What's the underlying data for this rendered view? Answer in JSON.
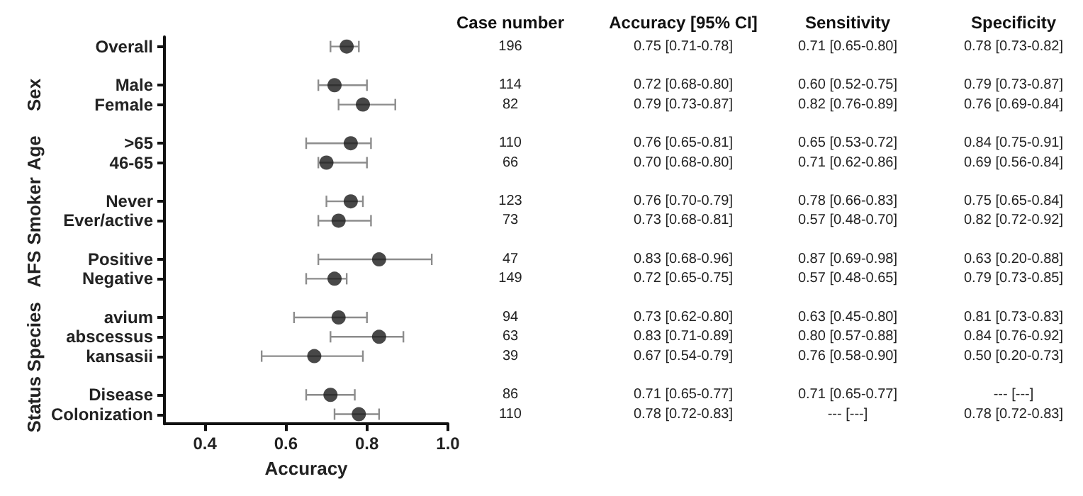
{
  "chart_data": {
    "type": "scatter",
    "xlabel": "Accuracy",
    "marker": "circle",
    "color": "#1a1a1a",
    "grid": false,
    "orientation": "horizontal",
    "categories": [
      "Overall",
      null,
      "Male",
      "Female",
      null,
      ">65",
      "46-65",
      null,
      "Never",
      "Ever/active",
      null,
      "Positive",
      "Negative",
      null,
      "avium",
      "abscessus",
      "kansasii",
      null,
      "Disease",
      "Colonization"
    ],
    "values": [
      0.75,
      null,
      0.72,
      0.79,
      null,
      0.76,
      0.7,
      null,
      0.76,
      0.73,
      null,
      0.83,
      0.72,
      null,
      0.73,
      0.83,
      0.67,
      null,
      0.71,
      0.78
    ],
    "errors": [
      [
        0.71,
        0.78
      ],
      null,
      [
        0.68,
        0.8
      ],
      [
        0.73,
        0.87
      ],
      null,
      [
        0.65,
        0.81
      ],
      [
        0.68,
        0.8
      ],
      null,
      [
        0.7,
        0.79
      ],
      [
        0.68,
        0.81
      ],
      null,
      [
        0.68,
        0.96
      ],
      [
        0.65,
        0.75
      ],
      null,
      [
        0.62,
        0.8
      ],
      [
        0.71,
        0.89
      ],
      [
        0.54,
        0.79
      ],
      null,
      [
        0.65,
        0.77
      ],
      [
        0.72,
        0.83
      ]
    ],
    "xlim": [
      0.3,
      1.0
    ],
    "xticks": [
      {
        "value": 0.4,
        "label": "0.4"
      },
      {
        "value": 0.6,
        "label": "0.6"
      },
      {
        "value": 0.8,
        "label": "0.8"
      },
      {
        "value": 1.0,
        "label": "1.0"
      }
    ],
    "annotations": [
      "Sex",
      "Age",
      "Smoker",
      "AFS",
      "Species",
      "Status",
      "Case number",
      "196",
      "114",
      "82",
      "110",
      "66",
      "123",
      "73",
      "47",
      "149",
      "94",
      "63",
      "39",
      "86",
      "110",
      "Accuracy [95% CI]",
      "0.75 [0.71-0.78]",
      "0.72 [0.68-0.80]",
      "0.79 [0.73-0.87]",
      "0.76 [0.65-0.81]",
      "0.70 [0.68-0.80]",
      "0.76 [0.70-0.79]",
      "0.73 [0.68-0.81]",
      "0.83 [0.68-0.96]",
      "0.72 [0.65-0.75]",
      "0.73 [0.62-0.80]",
      "0.83 [0.71-0.89]",
      "0.67 [0.54-0.79]",
      "0.71 [0.65-0.77]",
      "0.78 [0.72-0.83]",
      "Sensitivity",
      "0.71 [0.65-0.80]",
      "0.60 [0.52-0.75]",
      "0.82 [0.76-0.89]",
      "0.65 [0.53-0.72]",
      "0.71 [0.62-0.86]",
      "0.78 [0.66-0.83]",
      "0.57 [0.48-0.70]",
      "0.87 [0.69-0.98]",
      "0.57 [0.48-0.65]",
      "0.63 [0.45-0.80]",
      "0.80 [0.57-0.88]",
      "0.76 [0.58-0.90]",
      "0.71 [0.65-0.77]",
      "--- [---]",
      "Specificity",
      "0.78 [0.73-0.82]",
      "0.79 [0.73-0.87]",
      "0.76 [0.69-0.84]",
      "0.84 [0.75-0.91]",
      "0.69 [0.56-0.84]",
      "0.75 [0.65-0.84]",
      "0.82 [0.72-0.92]",
      "0.63 [0.20-0.88]",
      "0.79 [0.73-0.85]",
      "0.81 [0.73-0.83]",
      "0.84 [0.76-0.92]",
      "0.50 [0.20-0.73]",
      "--- [---]",
      "0.78 [0.72-0.83]"
    ]
  }
}
